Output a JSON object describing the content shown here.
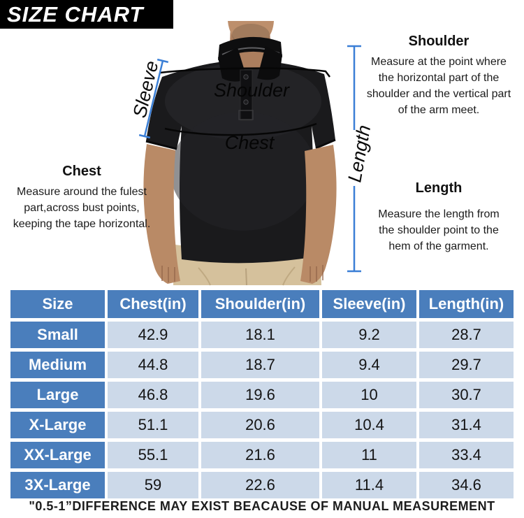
{
  "title": "SIZE CHART",
  "figure": {
    "sleeve_label": "Sleeve",
    "shoulder_shirt_label": "Shoulder",
    "chest_shirt_label": "Chest",
    "length_line_label": "Length",
    "callouts": {
      "shoulder": {
        "heading": "Shoulder",
        "description": "Measure at the point where\nthe horizontal part of the\nshoulder and the vertical part\nof the arm meet."
      },
      "length": {
        "heading": "Length",
        "description": "Measure the length from\nthe shoulder point to the\nhem of the garment."
      },
      "chest": {
        "heading": "Chest",
        "description": "Measure around the fulest\npart,across bust points,\nkeeping the tape horizontal."
      }
    }
  },
  "chart_data": {
    "type": "table",
    "title": "SIZE CHART",
    "columns": [
      "Size",
      "Chest(in)",
      "Shoulder(in)",
      "Sleeve(in)",
      "Length(in)"
    ],
    "rows": [
      [
        "Small",
        42.9,
        18.1,
        9.2,
        28.7
      ],
      [
        "Medium",
        44.8,
        18.7,
        9.4,
        29.7
      ],
      [
        "Large",
        46.8,
        19.6,
        10,
        30.7
      ],
      [
        "X-Large",
        51.1,
        20.6,
        10.4,
        31.4
      ],
      [
        "XX-Large",
        55.1,
        21.6,
        11,
        33.4
      ],
      [
        "3X-Large",
        59,
        22.6,
        11.4,
        34.6
      ]
    ]
  },
  "footer": "\"0.5-1”DIFFERENCE MAY EXIST BEACAUSE OF MANUAL MEASUREMENT",
  "colors": {
    "banner_black": "#000000",
    "table_header_blue": "#4a7ebc",
    "table_cell_blue": "#ccd9e9",
    "measure_line_blue": "#3b7fd6",
    "shirt_black": "#1a1a1c",
    "pants_khaki": "#d5c19c"
  }
}
